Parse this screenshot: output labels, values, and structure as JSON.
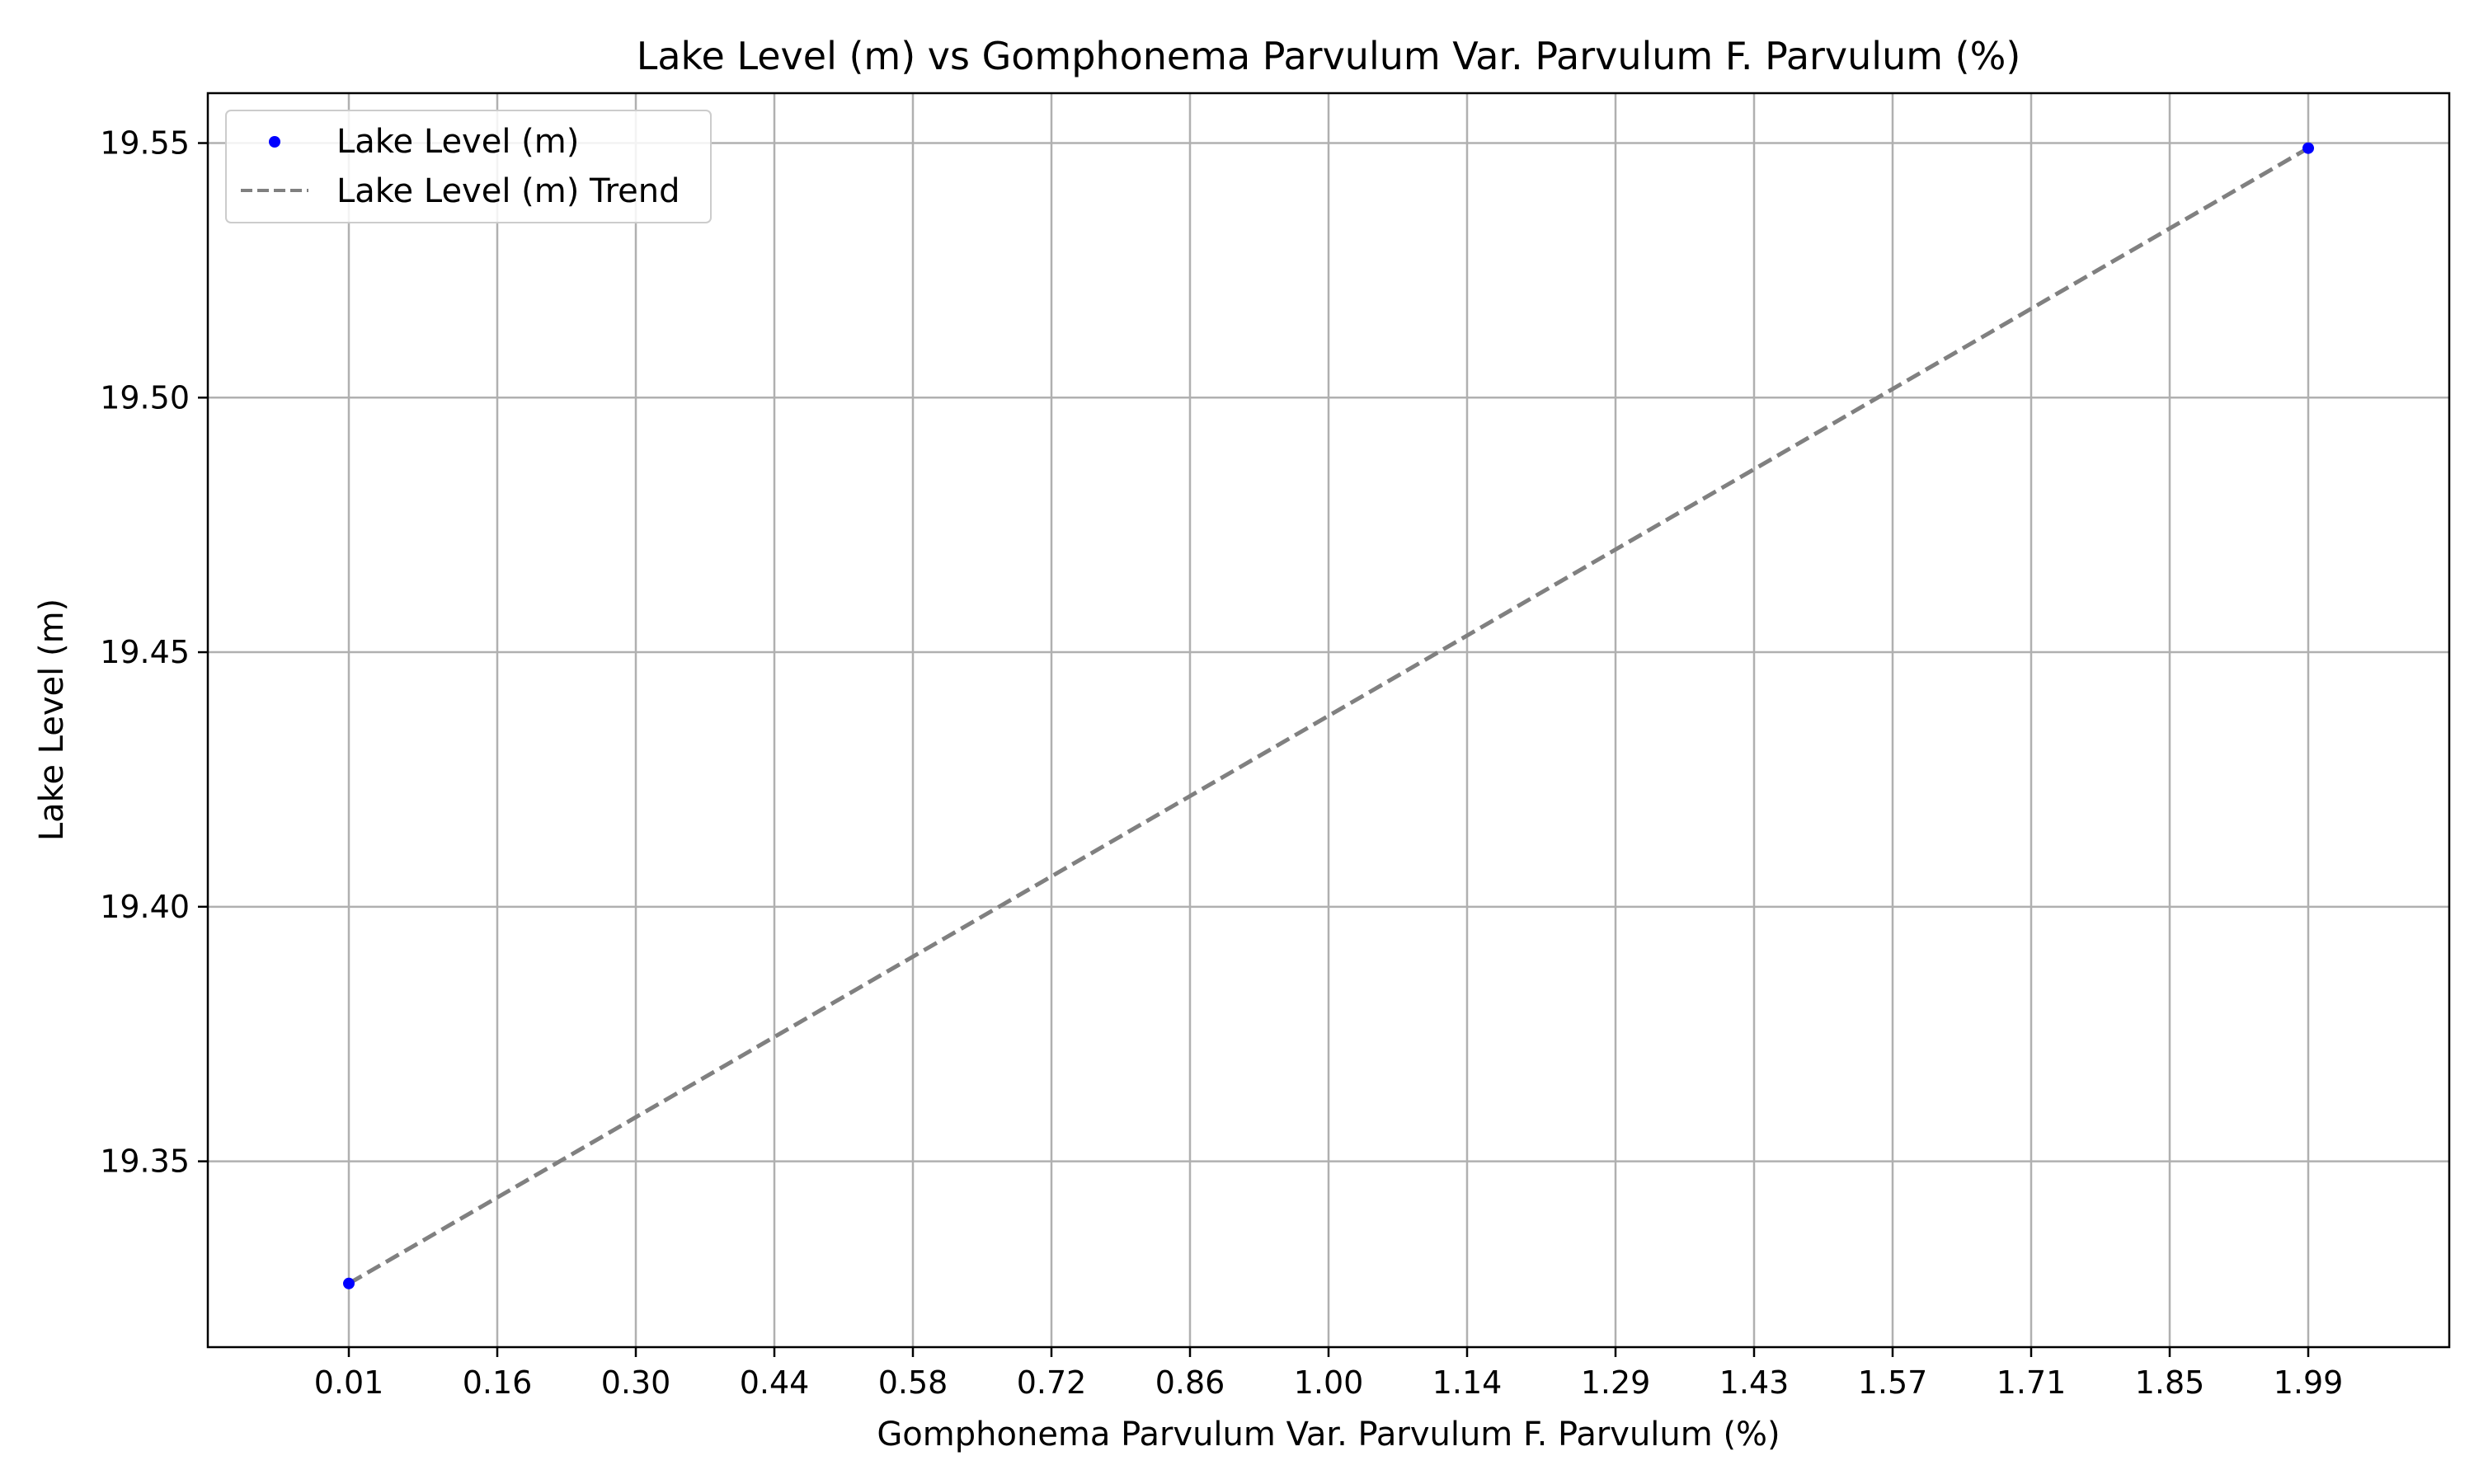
{
  "chart_data": {
    "type": "scatter",
    "title": "Lake Level (m) vs Gomphonema Parvulum Var. Parvulum F. Parvulum (%)",
    "xlabel": "Gomphonema Parvulum Var. Parvulum F. Parvulum (%)",
    "ylabel": "Lake Level (m)",
    "xlim": [
      -0.1325,
      2.1325
    ],
    "ylim": [
      19.3135,
      19.5598
    ],
    "x_ticks": [
      0.01,
      0.16,
      0.3,
      0.44,
      0.58,
      0.72,
      0.86,
      1.0,
      1.14,
      1.29,
      1.43,
      1.57,
      1.71,
      1.85,
      1.99
    ],
    "x_tick_labels": [
      "0.01",
      "0.16",
      "0.30",
      "0.44",
      "0.58",
      "0.72",
      "0.86",
      "1.00",
      "1.14",
      "1.29",
      "1.43",
      "1.57",
      "1.71",
      "1.85",
      "1.99"
    ],
    "y_ticks": [
      19.35,
      19.4,
      19.45,
      19.5,
      19.55
    ],
    "y_tick_labels": [
      "19.35",
      "19.40",
      "19.45",
      "19.50",
      "19.55"
    ],
    "grid": true,
    "legend_position": "top-left",
    "series": [
      {
        "name": "Lake Level (m)",
        "kind": "scatter",
        "color": "#0000ff",
        "x": [
          0.01,
          1.99
        ],
        "y": [
          19.326,
          19.549
        ]
      },
      {
        "name": "Lake Level (m) Trend",
        "kind": "line",
        "style": "dashed",
        "color": "#808080",
        "x": [
          0.01,
          1.99
        ],
        "y": [
          19.326,
          19.549
        ]
      }
    ]
  }
}
